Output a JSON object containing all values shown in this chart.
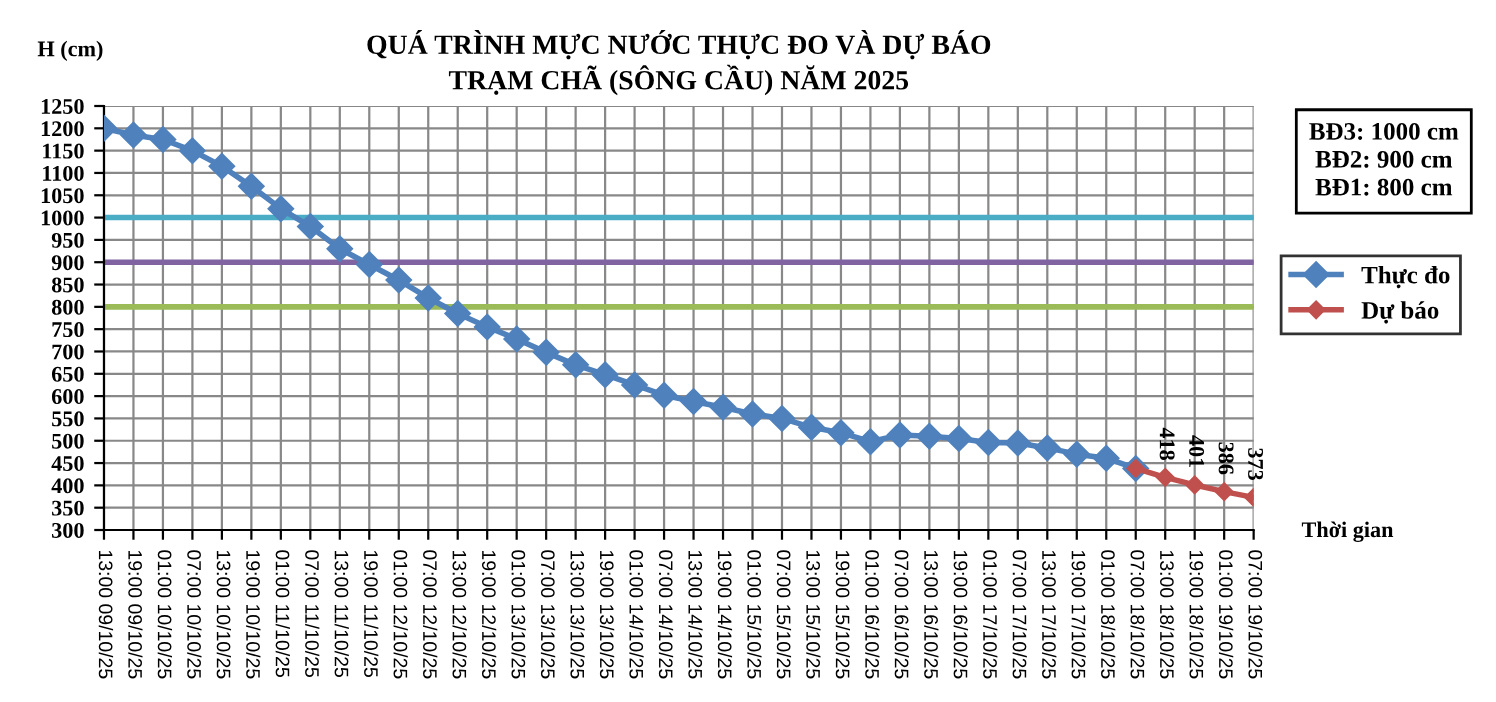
{
  "chart_data": {
    "type": "line",
    "title": "QUÁ TRÌNH MỰC NƯỚC THỰC ĐO VÀ DỰ BÁO\nTRẠM CHÃ (SÔNG CẦU) NĂM 2025",
    "ylabel": "H (cm)",
    "xlabel": "Thời gian",
    "categories": [
      "13:00 09/10/25",
      "19:00 09/10/25",
      "01:00 10/10/25",
      "07:00 10/10/25",
      "13:00 10/10/25",
      "19:00 10/10/25",
      "01:00 11/10/25",
      "07:00 11/10/25",
      "13:00 11/10/25",
      "19:00 11/10/25",
      "01:00 12/10/25",
      "07:00 12/10/25",
      "13:00 12/10/25",
      "19:00 12/10/25",
      "01:00 13/10/25",
      "07:00 13/10/25",
      "13:00 13/10/25",
      "19:00 13/10/25",
      "01:00 14/10/25",
      "07:00 14/10/25",
      "13:00 14/10/25",
      "19:00 14/10/25",
      "01:00 15/10/25",
      "07:00 15/10/25",
      "13:00 15/10/25",
      "19:00 15/10/25",
      "01:00 16/10/25",
      "07:00 16/10/25",
      "13:00 16/10/25",
      "19:00 16/10/25",
      "01:00 17/10/25",
      "07:00 17/10/25",
      "13:00 17/10/25",
      "19:00 17/10/25",
      "01:00 18/10/25",
      "07:00 18/10/25",
      "13:00 18/10/25",
      "19:00 18/10/25",
      "01:00 19/10/25",
      "07:00 19/10/25"
    ],
    "series": [
      {
        "name": "Thực đo",
        "color": "#4f81bd",
        "values": [
          1200,
          1185,
          1175,
          1150,
          1115,
          1070,
          1020,
          980,
          930,
          895,
          860,
          820,
          785,
          755,
          728,
          698,
          670,
          648,
          625,
          602,
          588,
          575,
          560,
          550,
          530,
          518,
          498,
          513,
          510,
          505,
          496,
          495,
          484,
          470,
          461,
          438,
          null,
          null,
          null,
          null
        ]
      },
      {
        "name": "Dự báo",
        "color": "#c0504d",
        "values": [
          null,
          null,
          null,
          null,
          null,
          null,
          null,
          null,
          null,
          null,
          null,
          null,
          null,
          null,
          null,
          null,
          null,
          null,
          null,
          null,
          null,
          null,
          null,
          null,
          null,
          null,
          null,
          null,
          null,
          null,
          null,
          null,
          null,
          null,
          null,
          438,
          418,
          401,
          386,
          373
        ],
        "value_labels": [
          null,
          null,
          null,
          null,
          null,
          null,
          null,
          null,
          null,
          null,
          null,
          null,
          null,
          null,
          null,
          null,
          null,
          null,
          null,
          null,
          null,
          null,
          null,
          null,
          null,
          null,
          null,
          null,
          null,
          null,
          null,
          null,
          null,
          null,
          null,
          null,
          "418",
          "401",
          "386",
          "373"
        ]
      }
    ],
    "ylim": [
      300,
      1250
    ],
    "yticks": [
      300,
      350,
      400,
      450,
      500,
      550,
      600,
      650,
      700,
      750,
      800,
      850,
      900,
      950,
      1000,
      1050,
      1100,
      1150,
      1200,
      1250
    ],
    "ref_lines": [
      {
        "axis": "y",
        "value": 1000,
        "color": "#4bacc6"
      },
      {
        "axis": "y",
        "value": 900,
        "color": "#8064a2"
      },
      {
        "axis": "y",
        "value": 800,
        "color": "#9bbb59"
      }
    ],
    "annotations": [
      "BĐ3: 1000 cm",
      "BĐ2: 900 cm",
      "BĐ1: 800 cm"
    ],
    "grid": true,
    "legend": "right",
    "marker": "diamond",
    "line_style": "solid"
  }
}
